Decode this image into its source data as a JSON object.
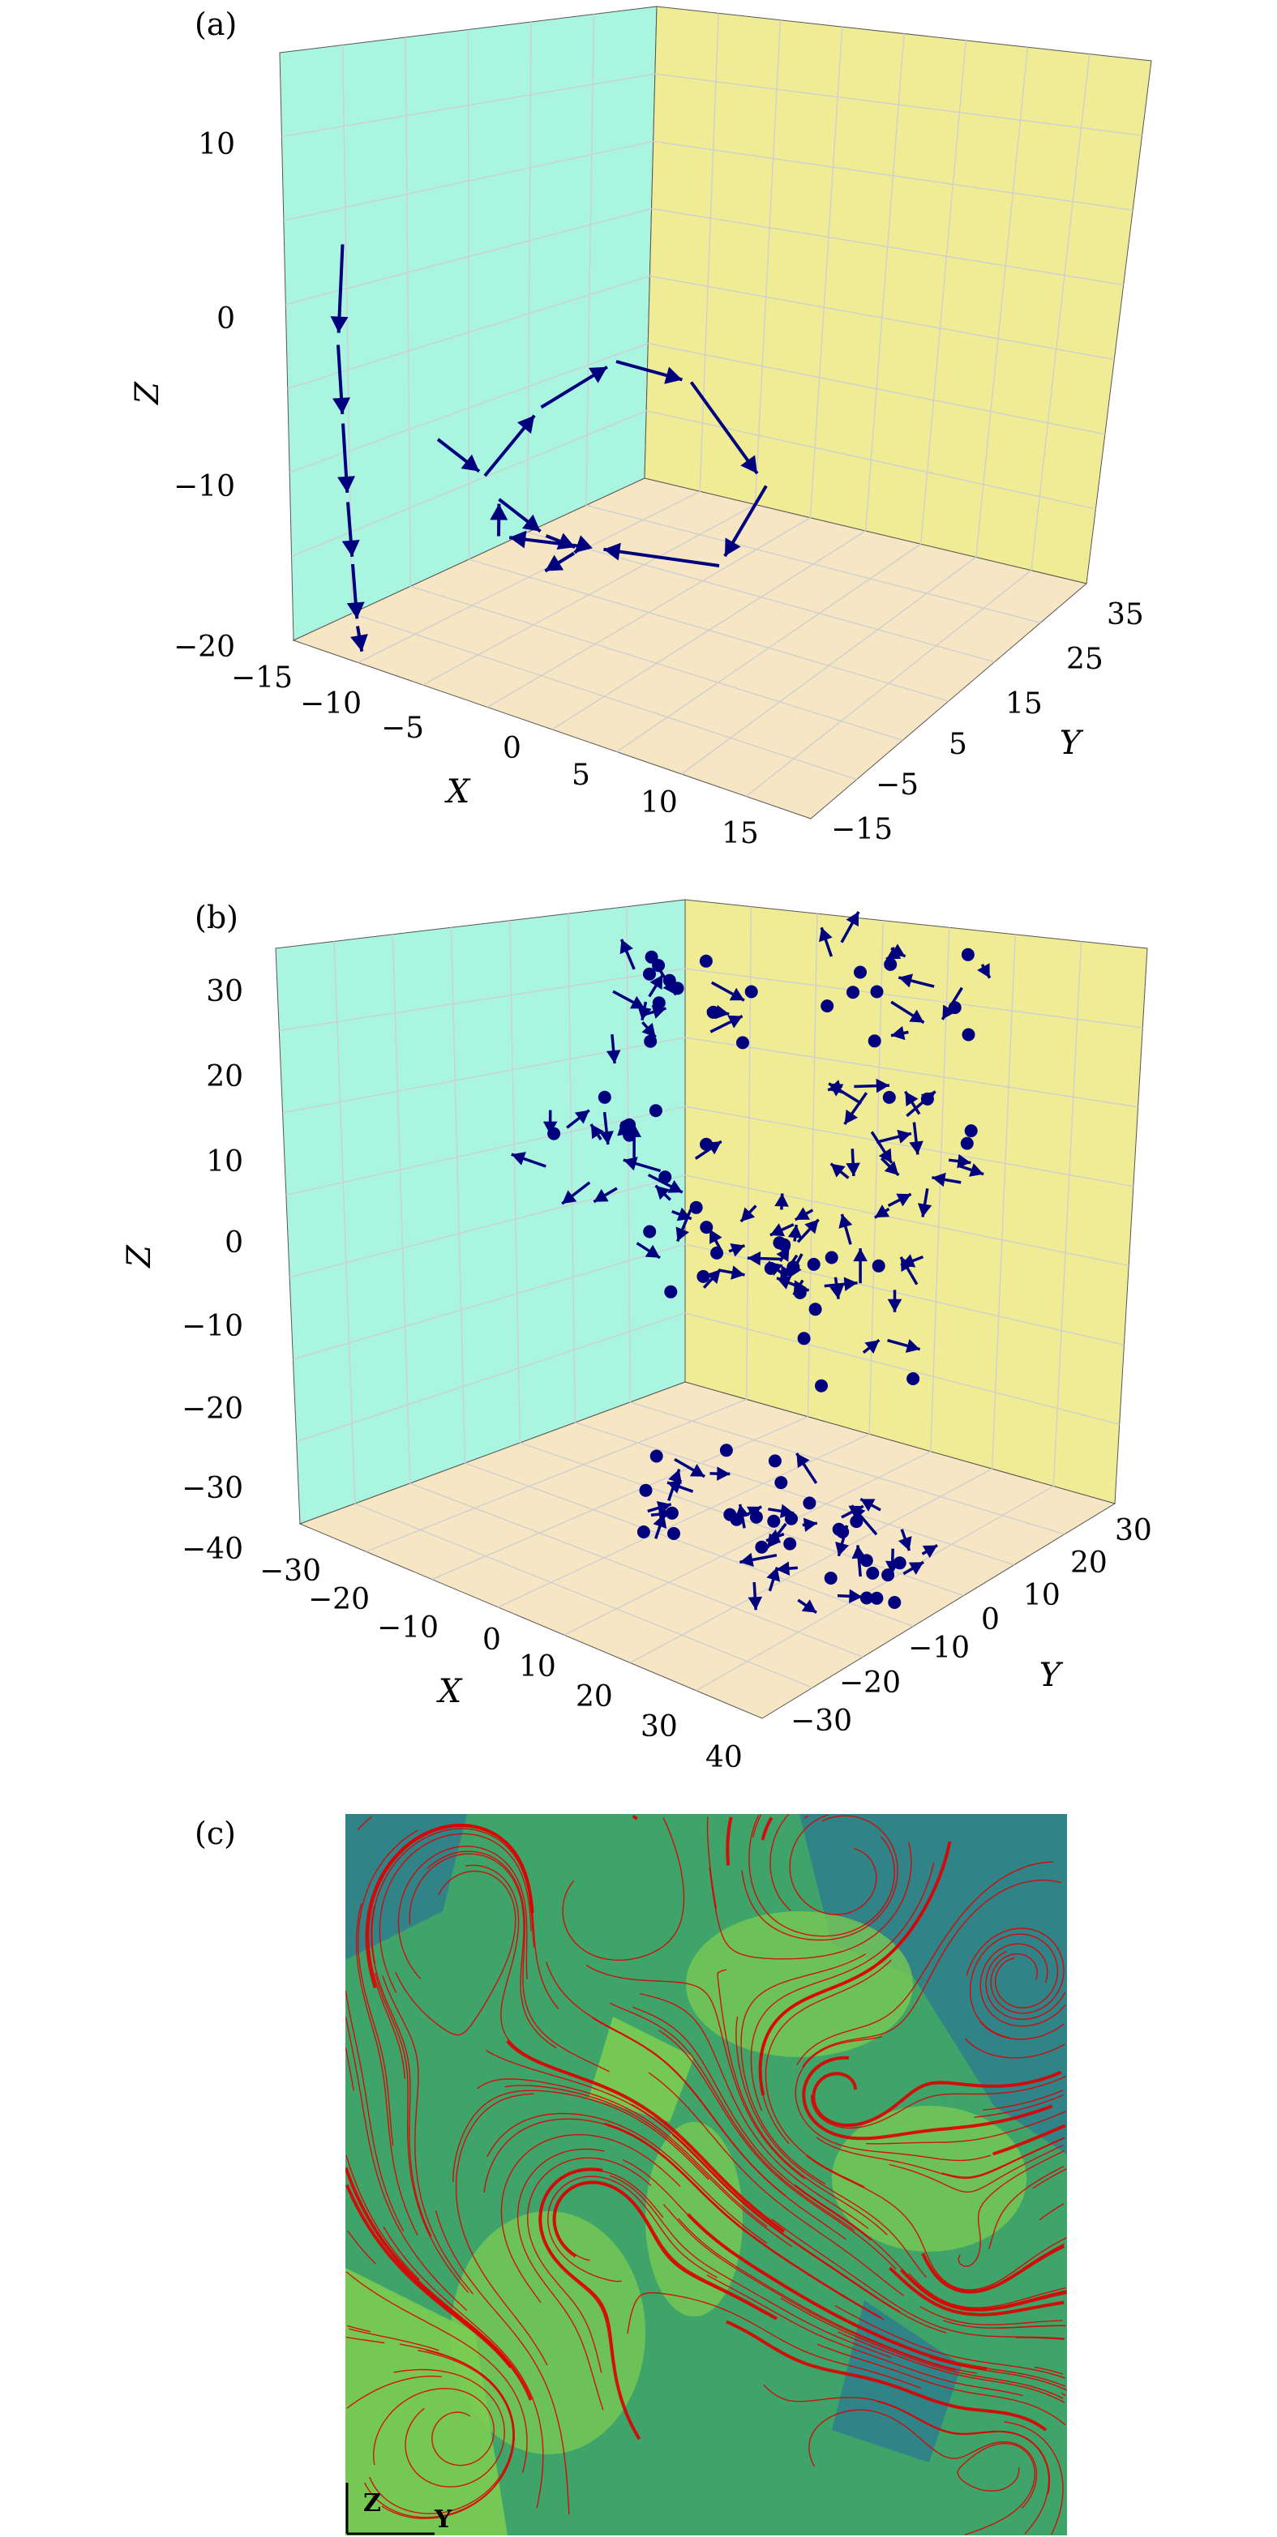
{
  "colors": {
    "pane_x": "#aaf5e0",
    "pane_y": "#f0ec96",
    "pane_z": "#f7e6c4",
    "arrows": "#00007f",
    "streamlines": "#dd0000",
    "field_dark": "#2f7f8a",
    "field_mid": "#3fa46a",
    "field_light": "#7ccc52"
  },
  "figure": {
    "label_a": "(a)",
    "label_b": "(b)",
    "label_c": "(c)"
  },
  "chart_data": [
    {
      "panel": "(a)",
      "type": "scatter",
      "projection": "3d-quiver",
      "xlabel": "X",
      "ylabel": "Y",
      "zlabel": "Z",
      "x_ticks": [
        "−15",
        "−10",
        "−5",
        "0",
        "5",
        "10",
        "15"
      ],
      "y_ticks": [
        "−15",
        "−5",
        "5",
        "15",
        "25",
        "35"
      ],
      "z_ticks": [
        "−20",
        "−10",
        "0",
        "10"
      ],
      "grid": true,
      "legend": "none",
      "trajectories": [
        {
          "points": [
            [
              -12,
              15,
              8
            ],
            [
              -11,
              13,
              3
            ],
            [
              -10,
              12,
              -1
            ],
            [
              -9,
              11,
              -5
            ],
            [
              -8,
              10,
              -8
            ],
            [
              -7,
              9,
              -11
            ],
            [
              -6,
              8,
              -12
            ]
          ]
        },
        {
          "points": [
            [
              -2,
              10,
              2
            ],
            [
              0,
              12,
              0
            ],
            [
              2,
              15,
              4
            ],
            [
              4,
              20,
              6
            ],
            [
              6,
              25,
              4
            ],
            [
              8,
              30,
              -3
            ],
            [
              6,
              28,
              -8
            ],
            [
              2,
              20,
              -6
            ],
            [
              -1,
              15,
              -5
            ],
            [
              1,
              12,
              -1
            ],
            [
              3,
              14,
              -3
            ],
            [
              4,
              16,
              -4
            ],
            [
              3,
              17,
              -5
            ],
            [
              2,
              15,
              -6
            ]
          ]
        }
      ]
    },
    {
      "panel": "(b)",
      "type": "scatter",
      "projection": "3d-quiver",
      "xlabel": "X",
      "ylabel": "Y",
      "zlabel": "Z",
      "x_ticks": [
        "−30",
        "−20",
        "−10",
        "0",
        "10",
        "20",
        "30",
        "40"
      ],
      "y_ticks": [
        "−30",
        "−20",
        "−10",
        "0",
        "10",
        "20",
        "30"
      ],
      "z_ticks": [
        "−40",
        "−30",
        "−20",
        "−10",
        "0",
        "10",
        "20",
        "30"
      ],
      "grid": true,
      "legend": "none",
      "note": "scattered quiver arrows and dot markers spiralling down the z axis"
    },
    {
      "panel": "(c)",
      "type": "heatmap",
      "projection": "2d-streamline",
      "axis_labels": [
        "Z",
        "Y"
      ],
      "legend": "none"
    }
  ]
}
